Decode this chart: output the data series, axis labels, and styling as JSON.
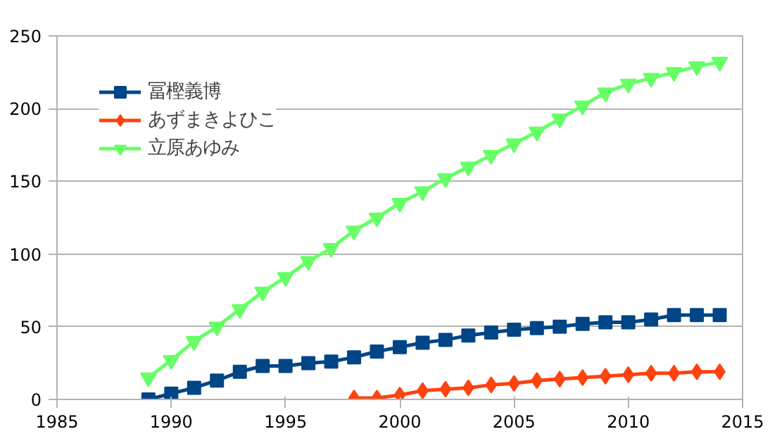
{
  "chart_data": {
    "type": "line",
    "xlim": [
      1985,
      2015
    ],
    "xticks": [
      1985,
      1990,
      1995,
      2000,
      2005,
      2010,
      2015
    ],
    "ylim": [
      0,
      250
    ],
    "yticks": [
      0,
      50,
      100,
      150,
      200,
      250
    ],
    "grid": "y",
    "legend": "top left",
    "series": [
      {
        "name": "冨樫義博",
        "color": "#004586",
        "marker": "square",
        "x": [
          1989,
          1990,
          1991,
          1992,
          1993,
          1994,
          1995,
          1996,
          1997,
          1998,
          1999,
          2000,
          2001,
          2002,
          2003,
          2004,
          2005,
          2006,
          2007,
          2008,
          2009,
          2010,
          2011,
          2012,
          2013,
          2014
        ],
        "values": [
          0,
          4,
          8,
          13,
          19,
          23,
          23,
          25,
          26,
          29,
          33,
          36,
          39,
          41,
          44,
          46,
          48,
          49,
          50,
          52,
          53,
          53,
          55,
          58,
          58,
          58
        ]
      },
      {
        "name": "あずまきよひこ",
        "color": "#ff420e",
        "marker": "diamond",
        "x": [
          1998,
          1999,
          2000,
          2001,
          2002,
          2003,
          2004,
          2005,
          2006,
          2007,
          2008,
          2009,
          2010,
          2011,
          2012,
          2013,
          2014
        ],
        "values": [
          1,
          1,
          3,
          6,
          7,
          8,
          10,
          11,
          13,
          14,
          15,
          16,
          17,
          18,
          18,
          19,
          19
        ]
      },
      {
        "name": "立原あゆみ",
        "color": "#66ff66",
        "marker": "triangle",
        "x": [
          1989,
          1990,
          1991,
          1992,
          1993,
          1994,
          1995,
          1996,
          1997,
          1998,
          1999,
          2000,
          2001,
          2002,
          2003,
          2004,
          2005,
          2006,
          2007,
          2008,
          2009,
          2010,
          2011,
          2012,
          2013,
          2014
        ],
        "values": [
          15,
          27,
          40,
          50,
          62,
          74,
          84,
          95,
          104,
          116,
          125,
          135,
          143,
          152,
          160,
          168,
          176,
          184,
          193,
          202,
          211,
          217,
          221,
          225,
          229,
          232
        ]
      }
    ]
  }
}
